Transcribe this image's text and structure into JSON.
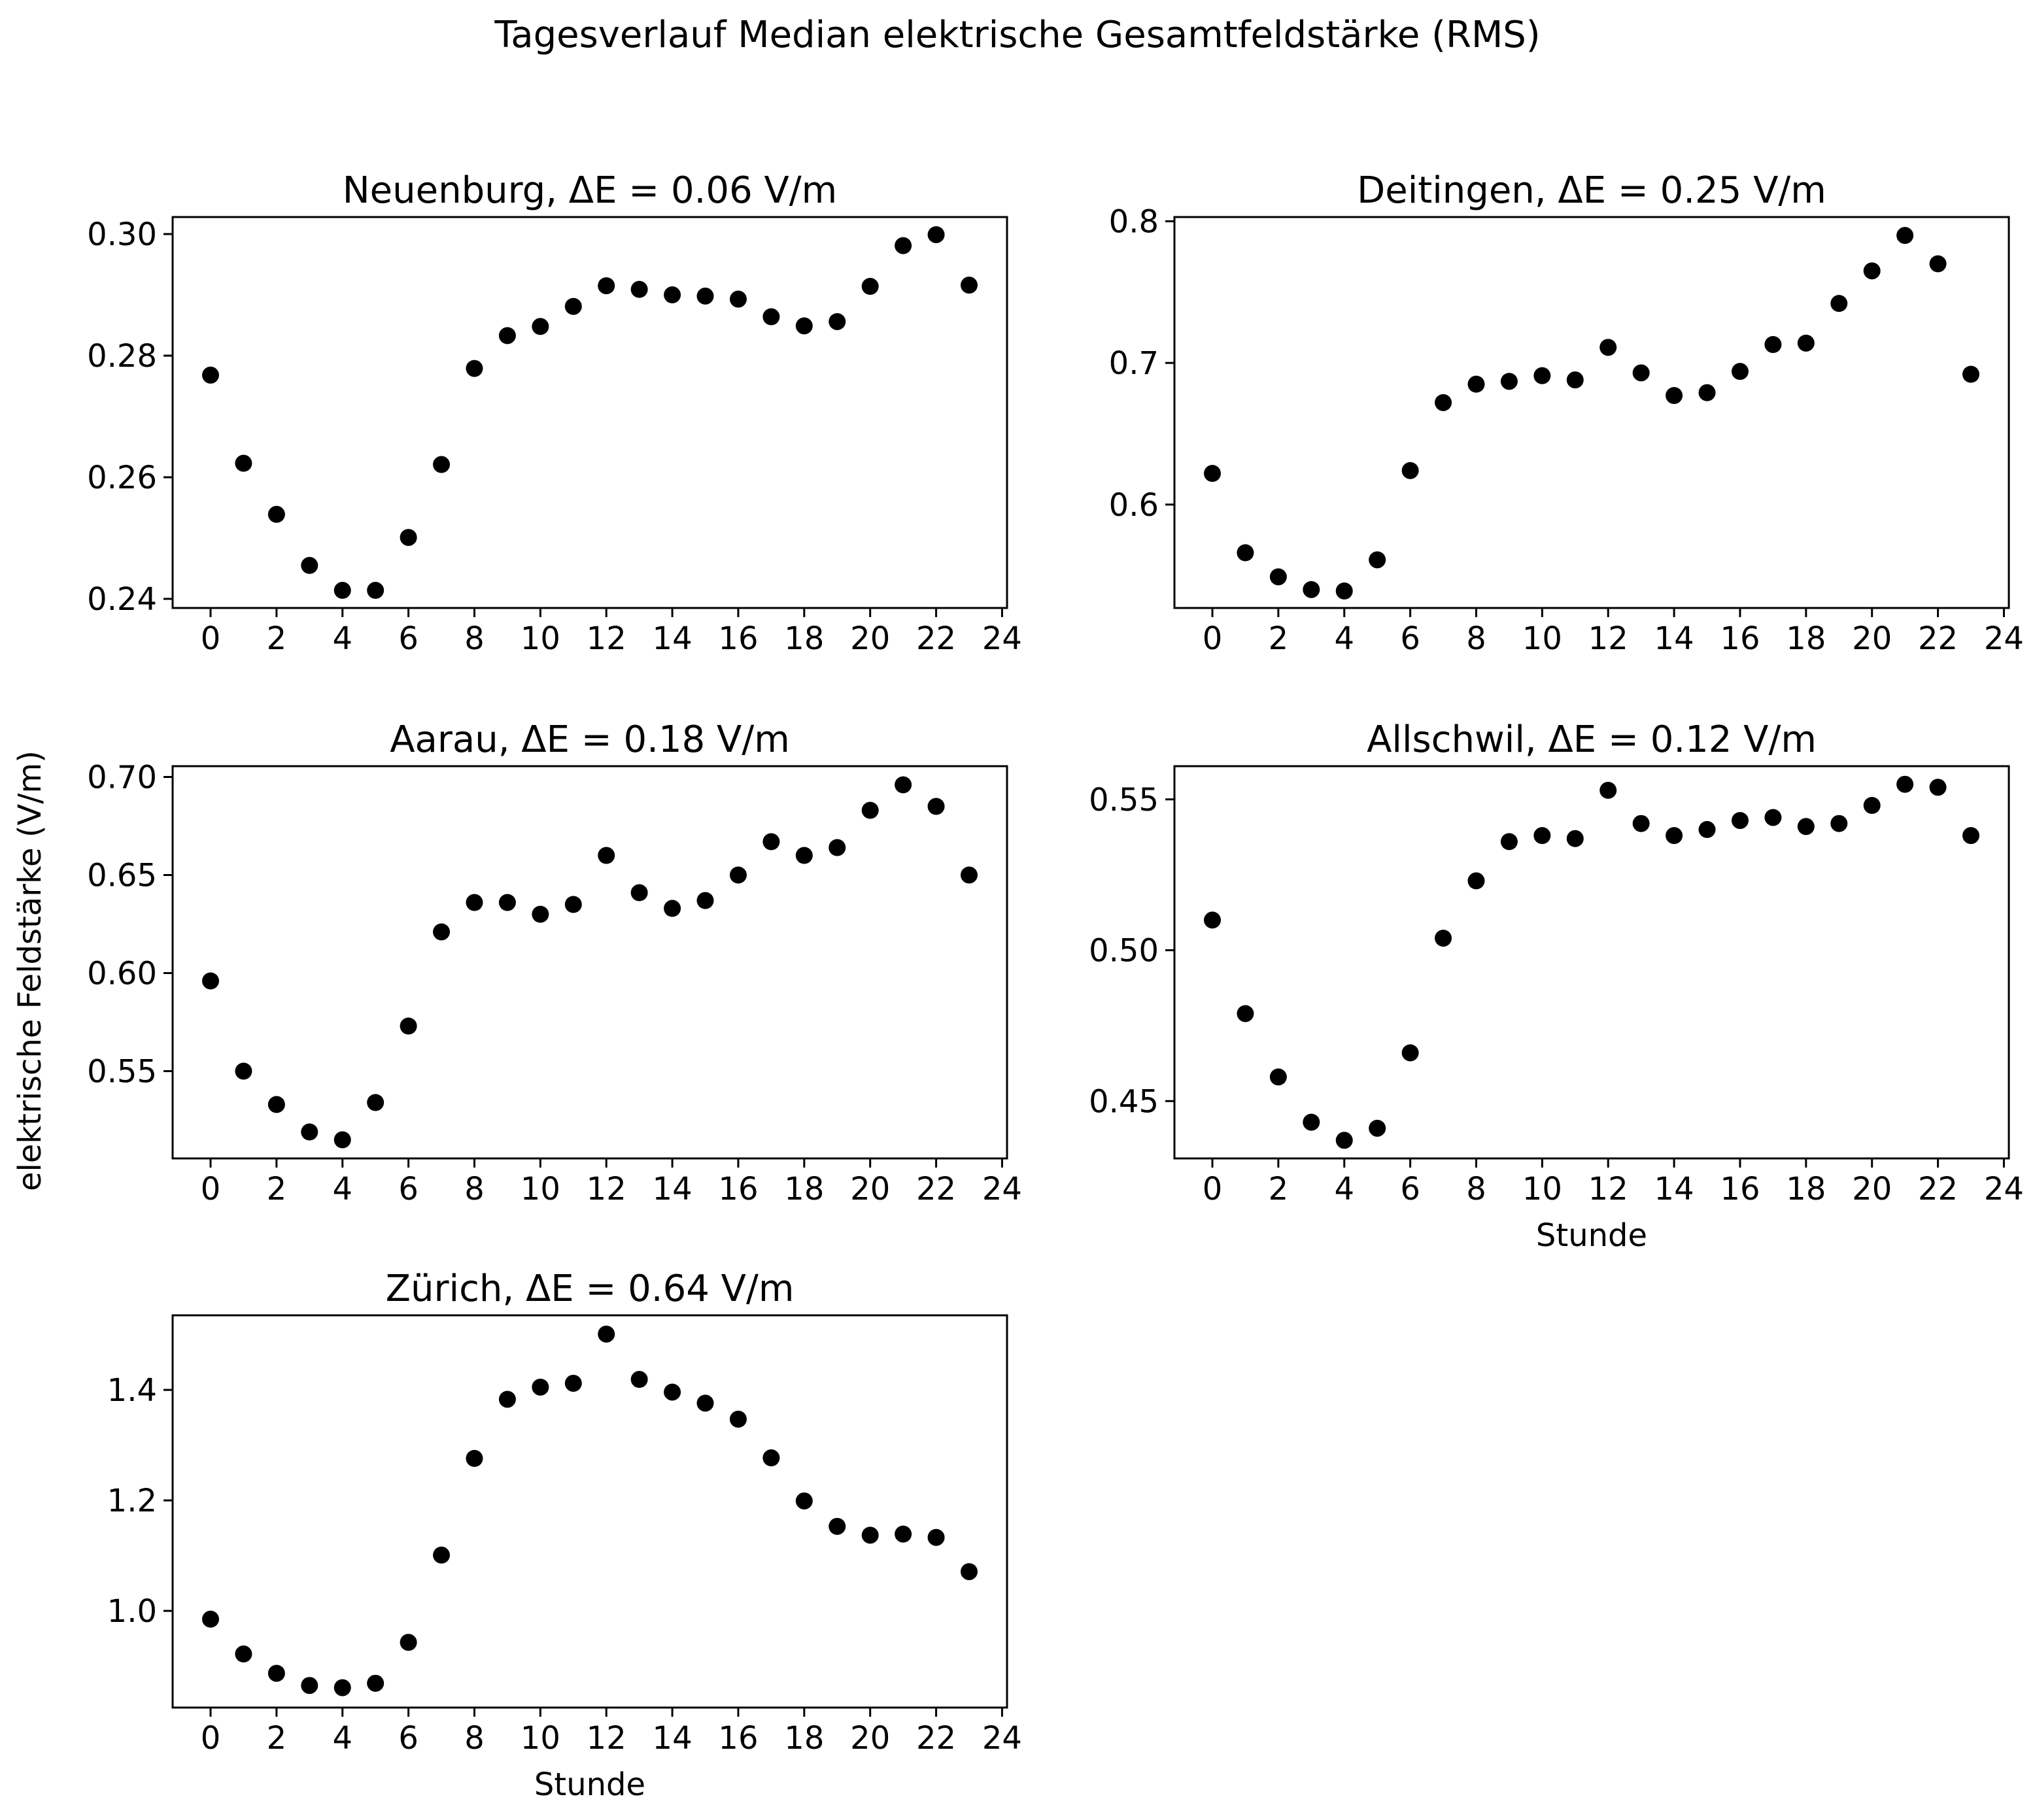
{
  "figure": {
    "suptitle": "Tagesverlauf Median elektrische Gesamtfeldstärke (RMS)",
    "shared_ylabel": "elektrische Feldstärke (V/m)",
    "marker_color": "#000000",
    "background": "#ffffff"
  },
  "chart_data": [
    {
      "type": "scatter",
      "title": "Neuenburg, ΔE = 0.06 V/m",
      "xlabel": "",
      "ylabel": "",
      "x": [
        0,
        1,
        2,
        3,
        4,
        5,
        6,
        7,
        8,
        9,
        10,
        11,
        12,
        13,
        14,
        15,
        16,
        17,
        18,
        19,
        20,
        21,
        22,
        23
      ],
      "y": [
        0.2768,
        0.2623,
        0.2539,
        0.2455,
        0.2414,
        0.2414,
        0.2501,
        0.2621,
        0.2779,
        0.2833,
        0.2848,
        0.2881,
        0.2915,
        0.2909,
        0.29,
        0.2898,
        0.2893,
        0.2864,
        0.2849,
        0.2856,
        0.2914,
        0.2981,
        0.2999,
        0.2916
      ],
      "xlim": [
        -1.15,
        24.15
      ],
      "ylim": [
        0.2385,
        0.3028
      ],
      "xticks": [
        0,
        2,
        4,
        6,
        8,
        10,
        12,
        14,
        16,
        18,
        20,
        22,
        24
      ],
      "yticks": [
        0.24,
        0.26,
        0.28,
        0.3
      ],
      "ytick_labels": [
        "0.24",
        "0.26",
        "0.28",
        "0.30"
      ]
    },
    {
      "type": "scatter",
      "title": "Deitingen, ΔE = 0.25 V/m",
      "xlabel": "",
      "ylabel": "",
      "x": [
        0,
        1,
        2,
        3,
        4,
        5,
        6,
        7,
        8,
        9,
        10,
        11,
        12,
        13,
        14,
        15,
        16,
        17,
        18,
        19,
        20,
        21,
        22,
        23
      ],
      "y": [
        0.622,
        0.566,
        0.549,
        0.54,
        0.539,
        0.561,
        0.624,
        0.672,
        0.685,
        0.687,
        0.691,
        0.688,
        0.711,
        0.693,
        0.677,
        0.679,
        0.694,
        0.713,
        0.714,
        0.742,
        0.765,
        0.79,
        0.77,
        0.692
      ],
      "xlim": [
        -1.15,
        24.15
      ],
      "ylim": [
        0.527,
        0.803
      ],
      "xticks": [
        0,
        2,
        4,
        6,
        8,
        10,
        12,
        14,
        16,
        18,
        20,
        22,
        24
      ],
      "yticks": [
        0.6,
        0.7,
        0.8
      ],
      "ytick_labels": [
        "0.6",
        "0.7",
        "0.8"
      ]
    },
    {
      "type": "scatter",
      "title": "Aarau, ΔE = 0.18 V/m",
      "xlabel": "",
      "ylabel": "",
      "x": [
        0,
        1,
        2,
        3,
        4,
        5,
        6,
        7,
        8,
        9,
        10,
        11,
        12,
        13,
        14,
        15,
        16,
        17,
        18,
        19,
        20,
        21,
        22,
        23
      ],
      "y": [
        0.596,
        0.55,
        0.533,
        0.519,
        0.515,
        0.534,
        0.573,
        0.621,
        0.636,
        0.636,
        0.63,
        0.635,
        0.66,
        0.641,
        0.633,
        0.637,
        0.65,
        0.667,
        0.66,
        0.664,
        0.683,
        0.696,
        0.685,
        0.65
      ],
      "xlim": [
        -1.15,
        24.15
      ],
      "ylim": [
        0.5055,
        0.7055
      ],
      "xticks": [
        0,
        2,
        4,
        6,
        8,
        10,
        12,
        14,
        16,
        18,
        20,
        22,
        24
      ],
      "yticks": [
        0.55,
        0.6,
        0.65,
        0.7
      ],
      "ytick_labels": [
        "0.55",
        "0.60",
        "0.65",
        "0.70"
      ]
    },
    {
      "type": "scatter",
      "title": "Allschwil, ΔE = 0.12 V/m",
      "xlabel": "Stunde",
      "ylabel": "",
      "x": [
        0,
        1,
        2,
        3,
        4,
        5,
        6,
        7,
        8,
        9,
        10,
        11,
        12,
        13,
        14,
        15,
        16,
        17,
        18,
        19,
        20,
        21,
        22,
        23
      ],
      "y": [
        0.51,
        0.479,
        0.458,
        0.443,
        0.437,
        0.441,
        0.466,
        0.504,
        0.523,
        0.536,
        0.538,
        0.537,
        0.553,
        0.542,
        0.538,
        0.54,
        0.543,
        0.544,
        0.541,
        0.542,
        0.548,
        0.555,
        0.554,
        0.538
      ],
      "xlim": [
        -1.15,
        24.15
      ],
      "ylim": [
        0.431,
        0.561
      ],
      "xticks": [
        0,
        2,
        4,
        6,
        8,
        10,
        12,
        14,
        16,
        18,
        20,
        22,
        24
      ],
      "yticks": [
        0.45,
        0.5,
        0.55
      ],
      "ytick_labels": [
        "0.45",
        "0.50",
        "0.55"
      ]
    },
    {
      "type": "scatter",
      "title": "Zürich, ΔE = 0.64 V/m",
      "xlabel": "Stunde",
      "ylabel": "",
      "x": [
        0,
        1,
        2,
        3,
        4,
        5,
        6,
        7,
        8,
        9,
        10,
        11,
        12,
        13,
        14,
        15,
        16,
        17,
        18,
        19,
        20,
        21,
        22,
        23
      ],
      "y": [
        0.985,
        0.922,
        0.887,
        0.865,
        0.861,
        0.869,
        0.943,
        1.101,
        1.276,
        1.383,
        1.405,
        1.412,
        1.501,
        1.419,
        1.396,
        1.376,
        1.347,
        1.277,
        1.199,
        1.153,
        1.137,
        1.139,
        1.133,
        1.071
      ],
      "xlim": [
        -1.15,
        24.15
      ],
      "ylim": [
        0.825,
        1.535
      ],
      "xticks": [
        0,
        2,
        4,
        6,
        8,
        10,
        12,
        14,
        16,
        18,
        20,
        22,
        24
      ],
      "yticks": [
        1.0,
        1.2,
        1.4
      ],
      "ytick_labels": [
        "1.0",
        "1.2",
        "1.4"
      ]
    }
  ]
}
